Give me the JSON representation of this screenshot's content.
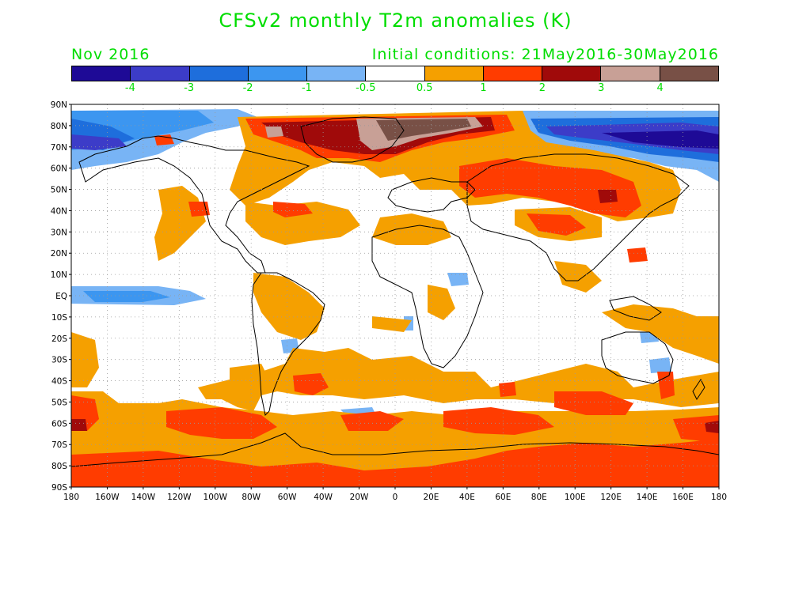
{
  "title": "CFSv2 monthly T2m anomalies (K)",
  "forecast_month": "Nov 2016",
  "initial_conditions": "Initial conditions: 21May2016-30May2016",
  "colorbar": {
    "colors": [
      "#1e0a96",
      "#3c3cc8",
      "#1e6edc",
      "#3c96f0",
      "#78b4f5",
      "#ffffff",
      "#f5a000",
      "#ff3c00",
      "#a00a0a",
      "#c8a096",
      "#785046"
    ],
    "labels": [
      "-4",
      "-3",
      "-2",
      "-1",
      "-0.5",
      "0.5",
      "1",
      "2",
      "3",
      "4"
    ]
  },
  "lat_labels": [
    "90N",
    "80N",
    "70N",
    "60N",
    "50N",
    "40N",
    "30N",
    "20N",
    "10N",
    "EQ",
    "10S",
    "20S",
    "30S",
    "40S",
    "50S",
    "60S",
    "70S",
    "80S",
    "90S"
  ],
  "lon_labels": [
    "180",
    "160W",
    "140W",
    "120W",
    "100W",
    "80W",
    "60W",
    "40W",
    "20W",
    "0",
    "20E",
    "40E",
    "60E",
    "80E",
    "100E",
    "120E",
    "140E",
    "160E",
    "180"
  ],
  "units": "K"
}
